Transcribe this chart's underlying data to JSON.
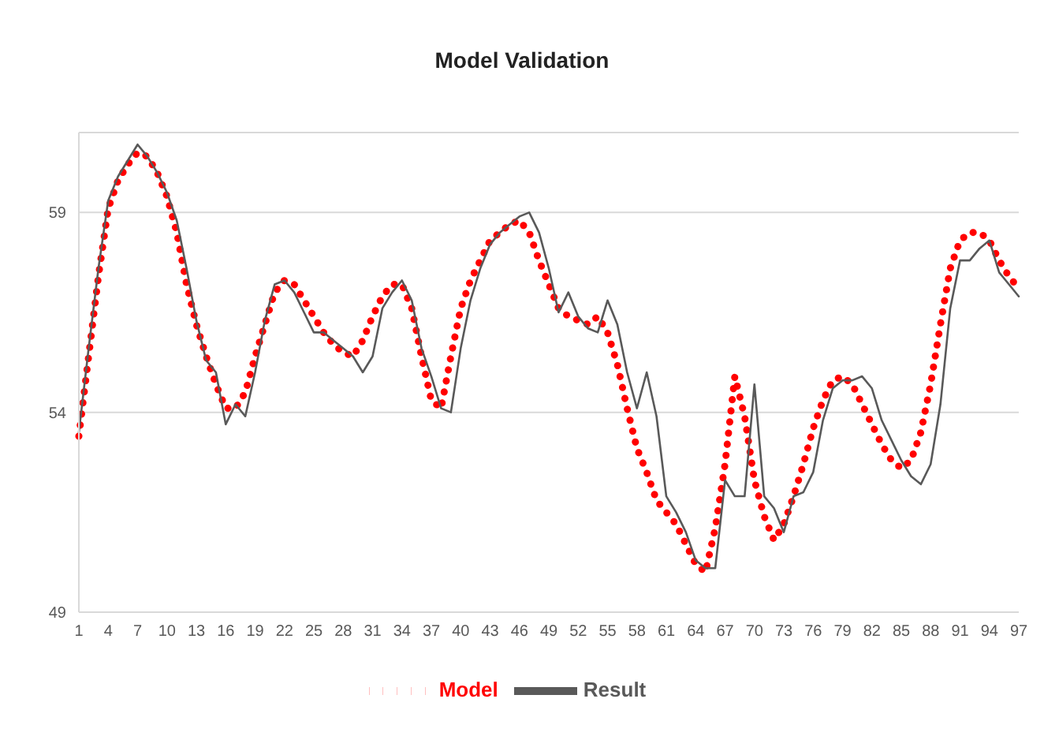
{
  "chart_data": {
    "type": "line",
    "title": "Model Validation",
    "categories": [
      "1",
      null,
      null,
      "4",
      null,
      null,
      "7",
      null,
      null,
      "10",
      null,
      null,
      "13",
      null,
      null,
      "16",
      null,
      null,
      "19",
      null,
      null,
      "22",
      null,
      null,
      "25",
      null,
      null,
      "28",
      null,
      null,
      "31",
      null,
      null,
      "34",
      null,
      null,
      "37",
      null,
      null,
      "40",
      null,
      null,
      "43",
      null,
      null,
      "46",
      null,
      null,
      "49",
      null,
      null,
      "52",
      null,
      null,
      "55",
      null,
      null,
      "58",
      null,
      null,
      "61",
      null,
      null,
      "64",
      null,
      null,
      "67",
      null,
      null,
      "70",
      null,
      null,
      "73",
      null,
      null,
      "76",
      null,
      null,
      "79",
      null,
      null,
      "82",
      null,
      null,
      "85",
      null,
      null,
      "88",
      null,
      null,
      "91",
      null,
      null,
      "94",
      null,
      null,
      "97"
    ],
    "series": [
      {
        "name": "Model",
        "color": "#ff0000",
        "line_style": "dotted",
        "values": [
          53.4,
          55.4,
          57.4,
          59.1,
          59.8,
          60.2,
          60.5,
          60.4,
          60.0,
          59.4,
          58.5,
          57.2,
          56.2,
          55.4,
          54.7,
          54.1,
          54.1,
          54.5,
          55.4,
          56.2,
          57.0,
          57.3,
          57.2,
          56.8,
          56.4,
          56.0,
          55.7,
          55.5,
          55.4,
          55.8,
          56.4,
          56.9,
          57.2,
          57.2,
          56.6,
          55.4,
          54.3,
          54.1,
          55.4,
          56.6,
          57.3,
          57.8,
          58.3,
          58.5,
          58.7,
          58.8,
          58.5,
          57.8,
          57.2,
          56.6,
          56.4,
          56.3,
          56.2,
          56.4,
          56.0,
          55.2,
          54.1,
          53.1,
          52.5,
          51.8,
          51.5,
          51.2,
          50.7,
          50.2,
          50.0,
          51.1,
          52.7,
          54.9,
          53.9,
          52.3,
          51.4,
          50.8,
          51.2,
          51.9,
          52.7,
          53.6,
          54.3,
          54.8,
          54.9,
          54.7,
          54.2,
          53.7,
          53.2,
          52.8,
          52.6,
          52.8,
          53.5,
          54.7,
          56.2,
          57.6,
          58.3,
          58.5,
          58.5,
          58.3,
          57.8,
          57.4,
          57.1
        ]
      },
      {
        "name": "Result",
        "color": "#595959",
        "line_style": "solid",
        "values": [
          53.5,
          55.6,
          57.6,
          59.3,
          59.9,
          60.3,
          60.7,
          60.4,
          60.0,
          59.5,
          58.8,
          57.6,
          56.3,
          55.3,
          55.0,
          53.7,
          54.2,
          53.9,
          55.0,
          56.3,
          57.2,
          57.3,
          57.0,
          56.5,
          56.0,
          56.0,
          55.8,
          55.6,
          55.4,
          55.0,
          55.4,
          56.6,
          57.0,
          57.3,
          56.8,
          55.6,
          54.9,
          54.1,
          54.0,
          55.6,
          56.8,
          57.6,
          58.2,
          58.5,
          58.7,
          58.9,
          59.0,
          58.5,
          57.6,
          56.5,
          57.0,
          56.4,
          56.1,
          56.0,
          56.8,
          56.2,
          55.0,
          54.1,
          55.0,
          53.9,
          51.9,
          51.5,
          51.0,
          50.3,
          50.1,
          50.1,
          52.3,
          51.9,
          51.9,
          54.7,
          51.9,
          51.6,
          51.0,
          51.9,
          52.0,
          52.5,
          53.8,
          54.6,
          54.8,
          54.8,
          54.9,
          54.6,
          53.8,
          53.3,
          52.8,
          52.4,
          52.2,
          52.7,
          54.2,
          56.6,
          57.8,
          57.8,
          58.1,
          58.3,
          57.5,
          57.2,
          56.9
        ]
      }
    ],
    "ylim": [
      49,
      61
    ],
    "yticks": [
      49,
      54,
      59
    ],
    "grid": "y",
    "legend": "bottom",
    "marker": "none"
  }
}
